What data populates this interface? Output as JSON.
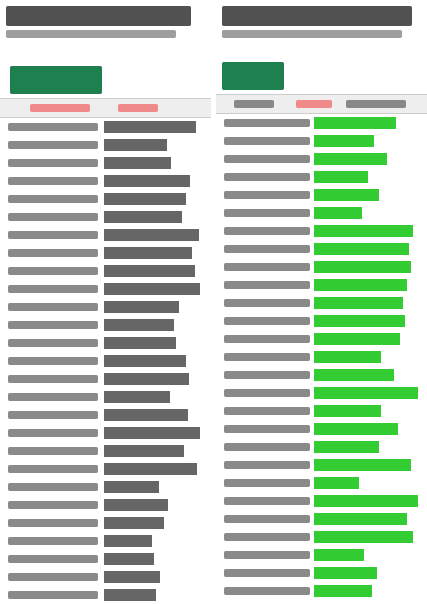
{
  "left_panel": {
    "bars": [
      0.92,
      0.63,
      0.67,
      0.86,
      0.82,
      0.78,
      0.95,
      0.88,
      0.91,
      0.96,
      0.75,
      0.7,
      0.72,
      0.82,
      0.85,
      0.66,
      0.84,
      0.96,
      0.8,
      0.93,
      0.55,
      0.64,
      0.6,
      0.48,
      0.5,
      0.56,
      0.52
    ]
  },
  "right_panel": {
    "bars": [
      0.76,
      0.56,
      0.68,
      0.5,
      0.6,
      0.44,
      0.92,
      0.88,
      0.9,
      0.86,
      0.82,
      0.84,
      0.8,
      0.62,
      0.74,
      0.96,
      0.62,
      0.78,
      0.6,
      0.9,
      0.42,
      0.96,
      0.86,
      0.92,
      0.46,
      0.58,
      0.54
    ]
  }
}
